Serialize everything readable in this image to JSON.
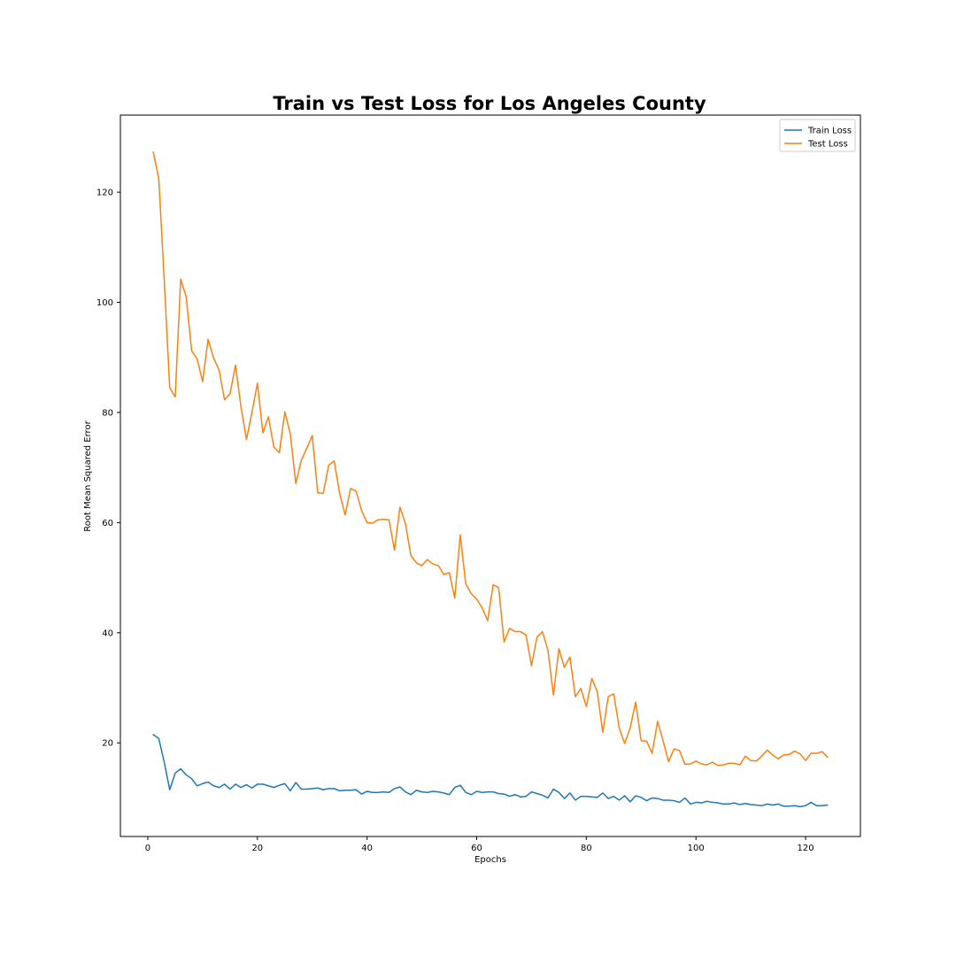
{
  "chart_data": {
    "type": "line",
    "title": "Train vs Test Loss for Los Angeles County",
    "xlabel": "Epochs",
    "ylabel": "Root Mean Squared Error",
    "xlim": [
      -5,
      130
    ],
    "ylim": [
      3,
      134
    ],
    "xticks": [
      0,
      20,
      40,
      60,
      80,
      100,
      120
    ],
    "yticks": [
      20,
      40,
      60,
      80,
      100,
      120
    ],
    "grid": false,
    "legend_position": "top-right",
    "x": [
      1,
      2,
      3,
      4,
      5,
      6,
      7,
      8,
      9,
      10,
      11,
      12,
      13,
      14,
      15,
      16,
      17,
      18,
      19,
      20,
      21,
      22,
      23,
      24,
      25,
      26,
      27,
      28,
      29,
      30,
      31,
      32,
      33,
      34,
      35,
      36,
      37,
      38,
      39,
      40,
      41,
      42,
      43,
      44,
      45,
      46,
      47,
      48,
      49,
      50,
      51,
      52,
      53,
      54,
      55,
      56,
      57,
      58,
      59,
      60,
      61,
      62,
      63,
      64,
      65,
      66,
      67,
      68,
      69,
      70,
      71,
      72,
      73,
      74,
      75,
      76,
      77,
      78,
      79,
      80,
      81,
      82,
      83,
      84,
      85,
      86,
      87,
      88,
      89,
      90,
      91,
      92,
      93,
      94,
      95,
      96,
      97,
      98,
      99,
      100,
      101,
      102,
      103,
      104,
      105,
      106,
      107,
      108,
      109,
      110,
      111,
      112,
      113,
      114,
      115,
      116,
      117,
      118,
      119,
      120,
      121,
      122,
      123,
      124
    ],
    "series": [
      {
        "name": "Train Loss",
        "color": "#1f77b4",
        "values": [
          21.5,
          20.8,
          16.5,
          11.5,
          14.5,
          15.3,
          14.2,
          13.5,
          12.2,
          12.6,
          12.9,
          12.2,
          11.9,
          12.5,
          11.6,
          12.5,
          11.9,
          12.4,
          11.8,
          12.5,
          12.5,
          12.2,
          11.9,
          12.3,
          12.6,
          11.3,
          12.8,
          11.6,
          11.6,
          11.7,
          11.8,
          11.5,
          11.7,
          11.7,
          11.3,
          11.4,
          11.4,
          11.5,
          10.7,
          11.2,
          11.0,
          11.0,
          11.1,
          11.0,
          11.7,
          12.0,
          11.1,
          10.6,
          11.4,
          11.1,
          11.0,
          11.2,
          11.1,
          10.9,
          10.6,
          11.9,
          12.3,
          11.0,
          10.6,
          11.2,
          11.0,
          11.1,
          11.1,
          10.8,
          10.7,
          10.3,
          10.6,
          10.2,
          10.3,
          11.1,
          10.8,
          10.5,
          10.0,
          11.6,
          11.0,
          9.9,
          10.9,
          9.6,
          10.3,
          10.3,
          10.2,
          10.1,
          10.9,
          9.9,
          10.3,
          9.6,
          10.4,
          9.3,
          10.4,
          10.1,
          9.5,
          10.0,
          9.9,
          9.6,
          9.6,
          9.5,
          9.2,
          10.0,
          8.9,
          9.2,
          9.1,
          9.4,
          9.2,
          9.1,
          8.9,
          8.9,
          9.1,
          8.8,
          9.0,
          8.8,
          8.7,
          8.6,
          8.9,
          8.7,
          8.9,
          8.5,
          8.5,
          8.6,
          8.4,
          8.6,
          9.2,
          8.6,
          8.6,
          8.7
        ]
      },
      {
        "name": "Test Loss",
        "color": "#ff7f0e",
        "values": [
          127.3,
          122.5,
          104.0,
          84.5,
          82.8,
          104.2,
          101.0,
          91.2,
          89.7,
          85.6,
          93.3,
          89.9,
          87.7,
          82.3,
          83.4,
          88.6,
          81.0,
          75.1,
          80.0,
          85.3,
          76.3,
          79.2,
          73.7,
          72.7,
          80.1,
          76.1,
          67.1,
          71.3,
          73.5,
          75.8,
          65.4,
          65.3,
          70.4,
          71.2,
          65.3,
          61.4,
          66.2,
          65.7,
          62.2,
          60.0,
          59.9,
          60.5,
          60.6,
          60.5,
          55.0,
          62.8,
          59.8,
          54.0,
          52.7,
          52.2,
          53.3,
          52.5,
          52.2,
          50.6,
          50.9,
          46.3,
          57.8,
          48.9,
          47.1,
          46.1,
          44.5,
          42.2,
          48.7,
          48.2,
          38.3,
          40.8,
          40.2,
          40.2,
          39.6,
          34.0,
          39.2,
          40.2,
          36.8,
          28.7,
          37.1,
          33.7,
          35.6,
          28.4,
          29.9,
          26.6,
          31.7,
          29.3,
          21.9,
          28.4,
          28.9,
          22.7,
          19.9,
          22.7,
          27.4,
          20.4,
          20.3,
          18.1,
          23.9,
          20.4,
          16.6,
          18.9,
          18.6,
          16.1,
          16.2,
          16.7,
          16.2,
          16.0,
          16.5,
          15.9,
          16.0,
          16.3,
          16.3,
          16.0,
          17.6,
          16.8,
          16.7,
          17.6,
          18.7,
          17.8,
          17.1,
          17.8,
          17.9,
          18.5,
          18.0,
          16.8,
          18.1,
          18.1,
          18.4,
          17.4
        ]
      }
    ]
  }
}
